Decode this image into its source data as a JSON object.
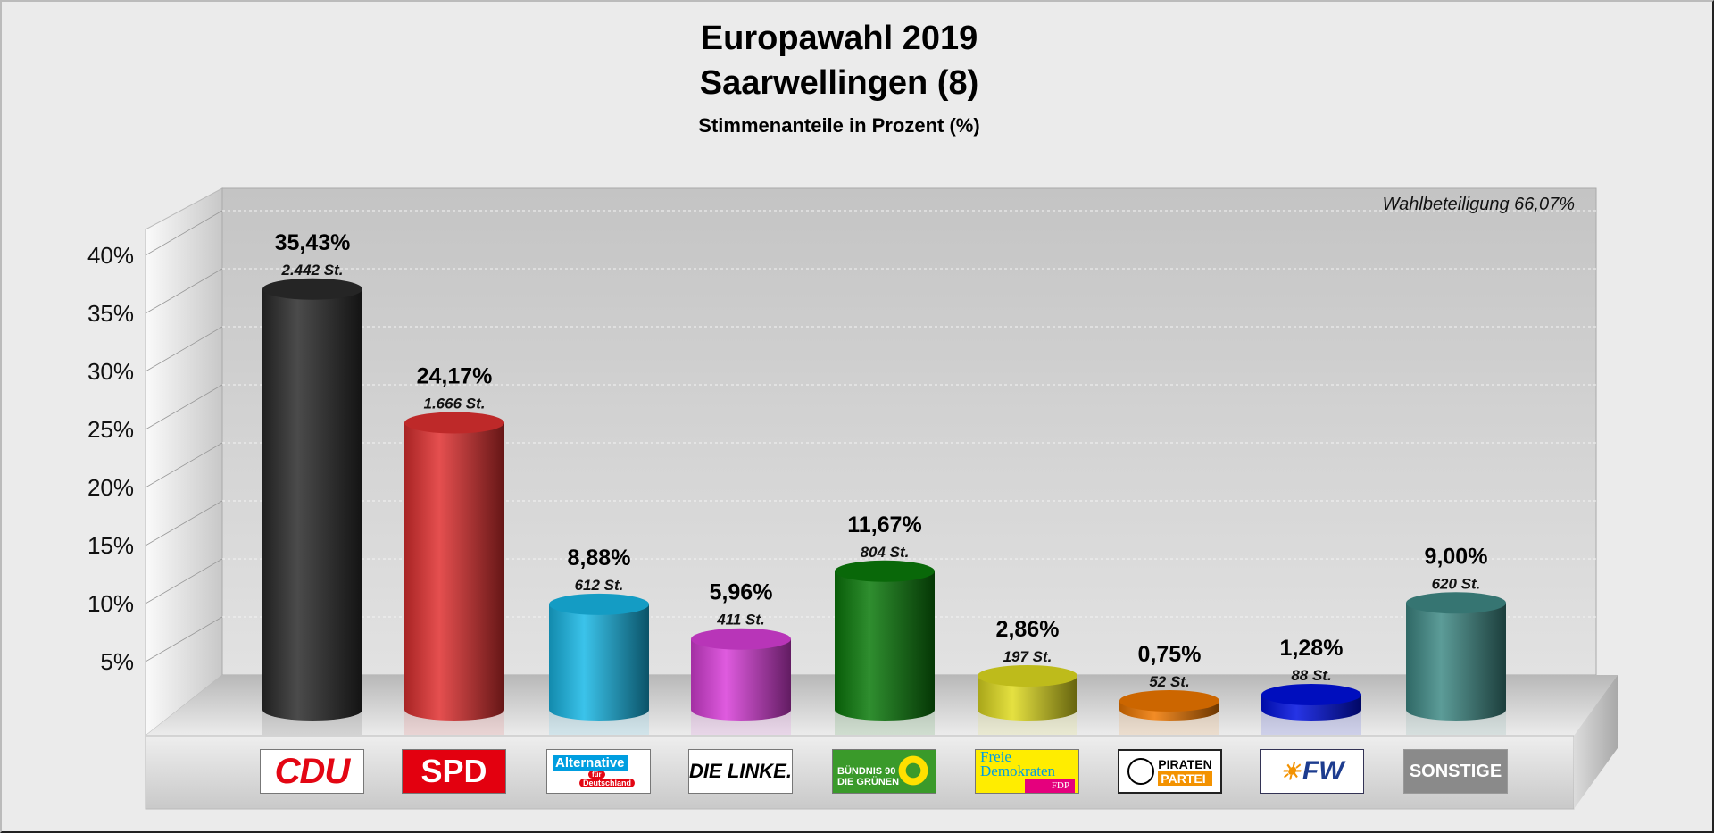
{
  "chart_data": {
    "type": "bar",
    "title": "Europawahl 2019",
    "subtitle": "Saarwellingen (8)",
    "ylabel": "Stimmenanteile in Prozent (%)",
    "annotation": "Wahlbeteiligung 66,07%",
    "ylim": [
      0,
      40
    ],
    "yticks": [
      "5%",
      "10%",
      "15%",
      "20%",
      "25%",
      "30%",
      "35%",
      "40%"
    ],
    "categories": [
      "CDU",
      "SPD",
      "AfD",
      "DIE LINKE.",
      "GRÜNE",
      "FDP",
      "PIRATEN",
      "FW",
      "SONSTIGE"
    ],
    "values": [
      35.43,
      24.17,
      8.88,
      5.96,
      11.67,
      2.86,
      0.75,
      1.28,
      9.0
    ],
    "value_labels": [
      "35,43%",
      "24,17%",
      "8,88%",
      "5,96%",
      "11,67%",
      "2,86%",
      "0,75%",
      "1,28%",
      "9,00%"
    ],
    "votes_labels": [
      "2.442 St.",
      "1.666 St.",
      "612 St.",
      "411 St.",
      "804 St.",
      "197 St.",
      "52 St.",
      "88 St.",
      "620 St."
    ],
    "colors": [
      "#2b2b2b",
      "#e03030",
      "#18b8e6",
      "#d93ed9",
      "#0a7a0a",
      "#e0dc20",
      "#f07800",
      "#0010e0",
      "#3f8a86"
    ],
    "grid": true
  },
  "logos": {
    "cdu": "CDU",
    "spd": "SPD",
    "afd_1": "Alternative",
    "afd_2": "für",
    "afd_3": "Deutschland",
    "linke": "DIE LINKE.",
    "gruene_1": "BÜNDNIS 90",
    "gruene_2": "DIE GRÜNEN",
    "fdp_1": "Freie",
    "fdp_2": "Demokraten",
    "fdp_3": "FDP",
    "piraten_1": "PIRATEN",
    "piraten_2": "PARTEI",
    "fw": "FW",
    "sonstige": "SONSTIGE"
  }
}
